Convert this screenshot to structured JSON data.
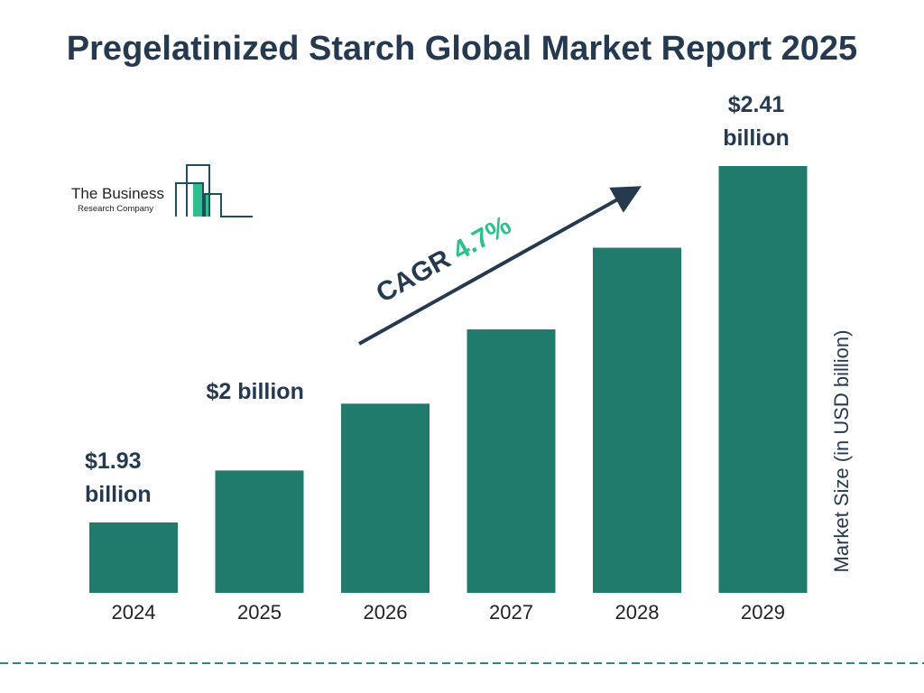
{
  "chart_data": {
    "type": "bar",
    "title": "Pregelatinized Starch Global Market Report 2025",
    "categories": [
      "2024",
      "2025",
      "2026",
      "2027",
      "2028",
      "2029"
    ],
    "values": [
      1.93,
      2.0,
      2.09,
      2.19,
      2.3,
      2.41
    ],
    "data_labels": [
      "$1.93 billion",
      "$2 billion",
      "",
      "",
      "",
      "$2.41 billion"
    ],
    "ylabel": "Market Size (in USD billion)",
    "xlabel": "",
    "grid": false,
    "annotation": {
      "prefix": "CAGR",
      "value": "4.7%"
    },
    "colors": {
      "bar": "#207b6c",
      "text": "#263a4f",
      "accent": "#2fbf8f"
    }
  },
  "logo": {
    "line1": "The Business",
    "line2": "Research Company"
  }
}
